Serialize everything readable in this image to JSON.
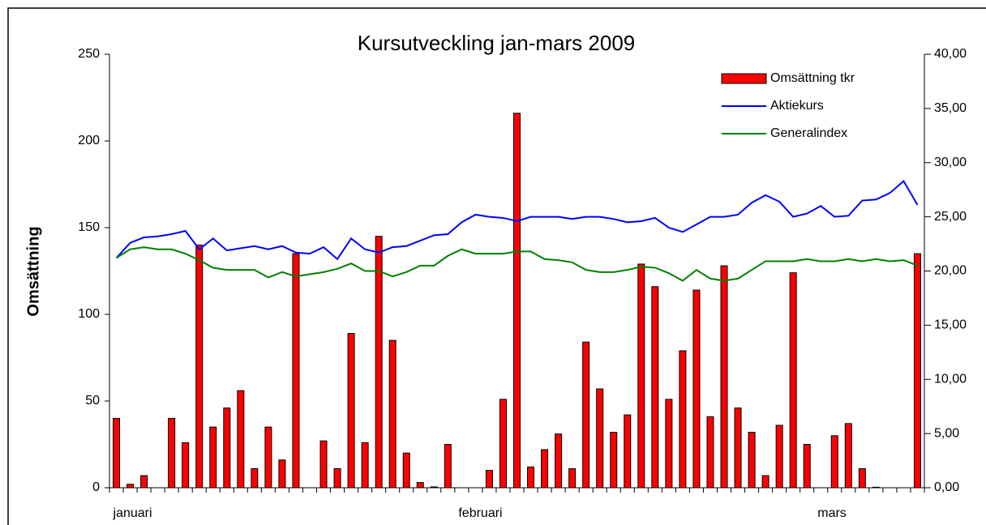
{
  "chart_data": {
    "type": "bar",
    "title": "Kursutveckling jan-mars 2009",
    "ylabel": "Omsättning",
    "categories": [
      "januari",
      null,
      null,
      null,
      null,
      null,
      null,
      null,
      null,
      null,
      null,
      null,
      null,
      null,
      null,
      null,
      null,
      null,
      null,
      null,
      null,
      null,
      null,
      null,
      null,
      "februari",
      null,
      null,
      null,
      null,
      null,
      null,
      null,
      null,
      null,
      null,
      null,
      null,
      null,
      null,
      null,
      null,
      null,
      null,
      null,
      null,
      null,
      null,
      null,
      null,
      null,
      "mars",
      null,
      null,
      null,
      null,
      null,
      null,
      null
    ],
    "series": [
      {
        "name": "Omsättning tkr",
        "type": "bar",
        "axis": "y",
        "color": "#ff0000",
        "values": [
          40,
          2,
          7,
          0,
          40,
          26,
          140,
          35,
          46,
          56,
          11,
          35,
          16,
          135,
          0,
          27,
          11,
          89,
          26,
          145,
          85,
          20,
          3,
          0.5,
          25,
          0,
          0,
          10,
          51,
          216,
          12,
          22,
          31,
          11,
          84,
          57,
          32,
          42,
          129,
          116,
          51,
          79,
          114,
          41,
          128,
          46,
          32,
          7,
          36,
          124,
          25,
          0,
          30,
          37,
          11,
          0.3,
          0,
          0,
          135
        ]
      },
      {
        "name": "Aktiekurs",
        "type": "line",
        "axis": "y2",
        "color": "#0000ff",
        "values": [
          21.2,
          22.6,
          23.1,
          23.2,
          23.4,
          23.7,
          22.0,
          23.0,
          21.9,
          22.1,
          22.3,
          22.0,
          22.3,
          21.7,
          21.6,
          22.2,
          21.1,
          23.0,
          22.0,
          21.7,
          22.2,
          22.3,
          22.8,
          23.3,
          23.4,
          24.5,
          25.2,
          25.0,
          24.9,
          24.6,
          25.0,
          25.0,
          25.0,
          24.8,
          25.0,
          25.0,
          24.8,
          24.5,
          24.6,
          24.9,
          24.0,
          23.6,
          24.3,
          25.0,
          25.0,
          25.2,
          26.3,
          27.0,
          26.4,
          25.0,
          25.3,
          26.0,
          25.0,
          25.1,
          26.5,
          26.6,
          27.2,
          28.3,
          26.1
        ]
      },
      {
        "name": "Generalindex",
        "type": "line",
        "axis": "y2",
        "color": "#008000",
        "values": [
          21.2,
          22.0,
          22.2,
          22.0,
          22.0,
          21.6,
          21.0,
          20.3,
          20.1,
          20.1,
          20.1,
          19.4,
          19.9,
          19.5,
          19.7,
          19.9,
          20.2,
          20.7,
          20.0,
          20.0,
          19.5,
          19.9,
          20.5,
          20.5,
          21.4,
          22.0,
          21.6,
          21.6,
          21.6,
          21.8,
          21.8,
          21.1,
          21.0,
          20.8,
          20.1,
          19.9,
          19.9,
          20.1,
          20.4,
          20.3,
          19.8,
          19.1,
          20.1,
          19.3,
          19.1,
          19.3,
          20.1,
          20.9,
          20.9,
          20.9,
          21.1,
          20.9,
          20.9,
          21.1,
          20.9,
          21.1,
          20.9,
          21.0,
          20.5
        ]
      }
    ],
    "ylim": [
      0,
      250
    ],
    "yticks": [
      0,
      50,
      100,
      150,
      200,
      250
    ],
    "y2lim": [
      0,
      40
    ],
    "y2ticks": [
      {
        "value": 0,
        "label": "0,00"
      },
      {
        "value": 5,
        "label": "5,00"
      },
      {
        "value": 10,
        "label": "10,00"
      },
      {
        "value": 15,
        "label": "15,00"
      },
      {
        "value": 20,
        "label": "20,00"
      },
      {
        "value": 25,
        "label": "25,00"
      },
      {
        "value": 30,
        "label": "30,00"
      },
      {
        "value": 35,
        "label": "35,00"
      },
      {
        "value": 40,
        "label": "40,00"
      }
    ],
    "grid": false,
    "legend": "top-right"
  }
}
